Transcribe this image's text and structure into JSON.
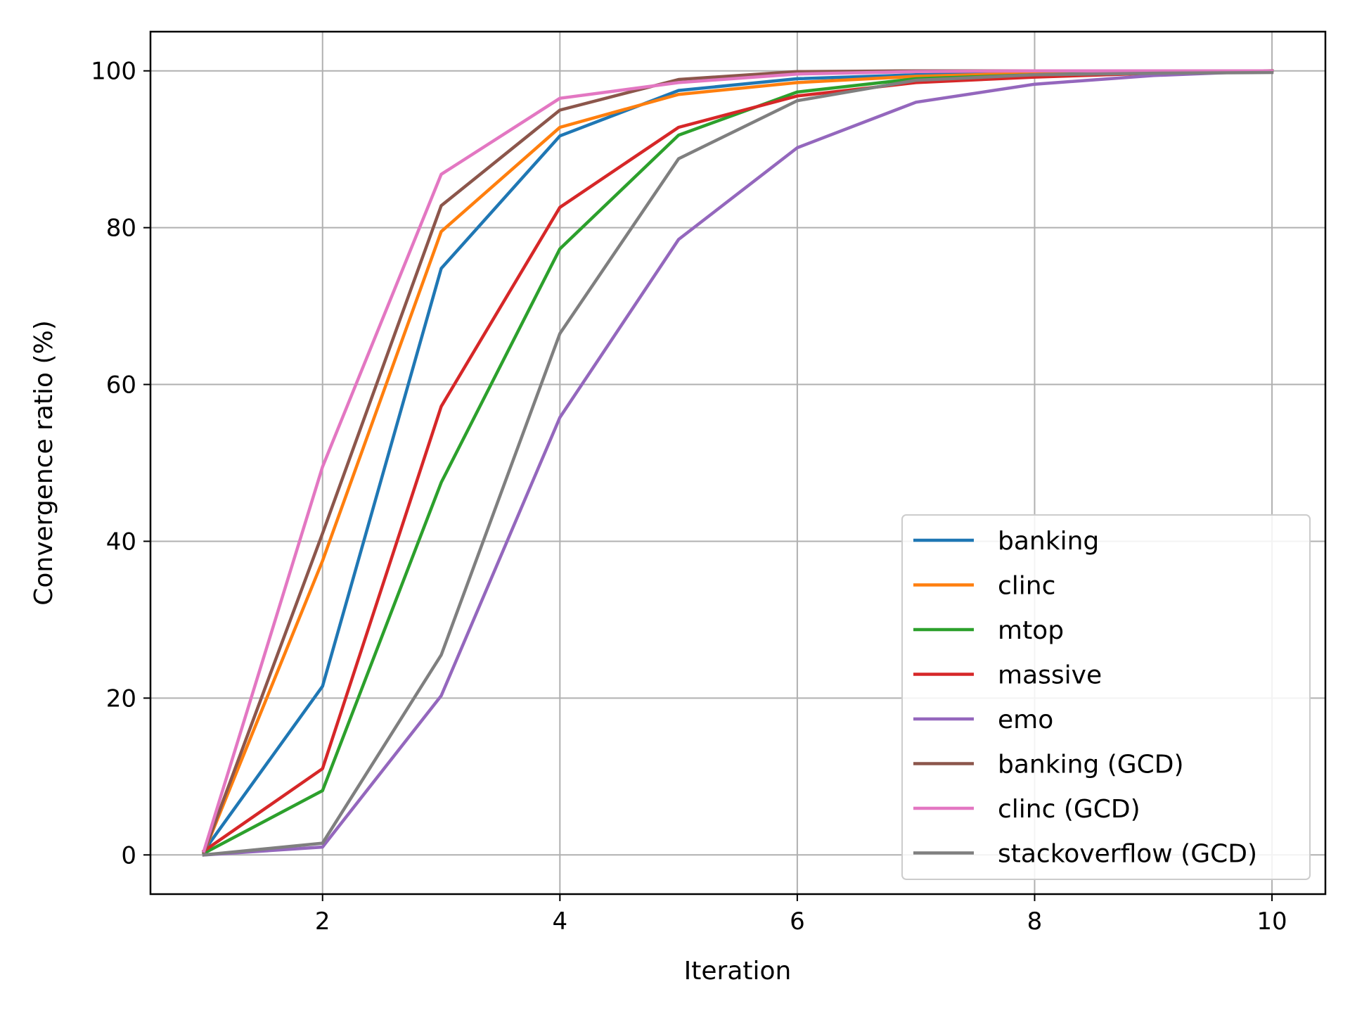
{
  "chart_data": {
    "type": "line",
    "title": "",
    "xlabel": "Iteration",
    "ylabel": "Convergence ratio (%)",
    "xlim": [
      0.55,
      10.45
    ],
    "ylim": [
      -5,
      105
    ],
    "xticks": [
      2,
      4,
      6,
      8,
      10
    ],
    "yticks": [
      0,
      20,
      40,
      60,
      80,
      100
    ],
    "grid": true,
    "legend_position": "lower-right",
    "x": [
      1,
      2,
      3,
      4,
      5,
      6,
      7,
      8,
      9,
      10
    ],
    "series": [
      {
        "name": "banking",
        "color": "#1f77b4",
        "values": [
          0.5,
          21.5,
          74.8,
          91.7,
          97.5,
          99.0,
          99.5,
          99.8,
          99.9,
          100.0
        ]
      },
      {
        "name": "clinc",
        "color": "#ff7f0e",
        "values": [
          0.3,
          37.5,
          79.5,
          92.8,
          97.0,
          98.5,
          99.3,
          99.7,
          99.9,
          100.0
        ]
      },
      {
        "name": "mtop",
        "color": "#2ca02c",
        "values": [
          0.2,
          8.2,
          47.5,
          77.3,
          91.8,
          97.3,
          99.0,
          99.5,
          99.8,
          100.0
        ]
      },
      {
        "name": "massive",
        "color": "#d62728",
        "values": [
          0.5,
          11.0,
          57.2,
          82.6,
          92.8,
          96.8,
          98.5,
          99.2,
          99.7,
          100.0
        ]
      },
      {
        "name": "emo",
        "color": "#9467bd",
        "values": [
          0.0,
          1.0,
          20.3,
          55.8,
          78.5,
          90.2,
          96.0,
          98.3,
          99.4,
          100.0
        ]
      },
      {
        "name": "banking (GCD)",
        "color": "#8c564b",
        "values": [
          0.3,
          41.0,
          82.8,
          95.0,
          98.9,
          99.9,
          100.0,
          100.0,
          100.0,
          100.0
        ]
      },
      {
        "name": "clinc (GCD)",
        "color": "#e377c2",
        "values": [
          0.5,
          49.5,
          86.8,
          96.5,
          98.5,
          99.6,
          99.9,
          100.0,
          100.0,
          100.0
        ]
      },
      {
        "name": "stackoverflow (GCD)",
        "color": "#7f7f7f",
        "values": [
          0.0,
          1.5,
          25.5,
          66.5,
          88.8,
          96.2,
          98.8,
          99.5,
          99.7,
          99.8
        ]
      }
    ]
  }
}
